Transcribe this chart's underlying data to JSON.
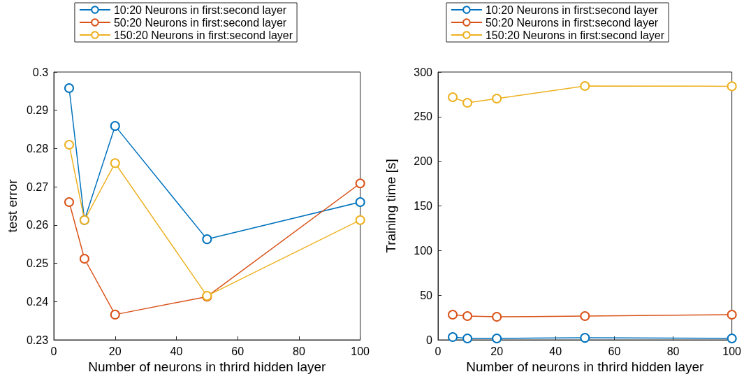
{
  "chart_data": [
    {
      "type": "line",
      "xlabel": "Number of neurons in thrird hidden layer",
      "ylabel": "test error",
      "x": [
        5,
        10,
        20,
        50,
        100
      ],
      "xlim": [
        0,
        100
      ],
      "xticks": [
        0,
        20,
        40,
        60,
        80,
        100
      ],
      "ylim": [
        0.23,
        0.3
      ],
      "yticks": [
        0.23,
        0.24,
        0.25,
        0.26,
        0.27,
        0.28,
        0.29,
        0.3
      ],
      "legend": "top",
      "marker": "circle",
      "series": [
        {
          "name": "10:20 Neurons in first:second layer",
          "color": "#0072bd",
          "values": [
            0.2958,
            0.2613,
            0.2859,
            0.2563,
            0.266
          ]
        },
        {
          "name": "50:20 Neurons in first:second layer",
          "color": "#d95319",
          "values": [
            0.266,
            0.2512,
            0.2366,
            0.2413,
            0.2709
          ]
        },
        {
          "name": "150:20 Neurons in first:second layer",
          "color": "#edb120",
          "values": [
            0.281,
            0.2613,
            0.2762,
            0.2415,
            0.2613
          ]
        }
      ]
    },
    {
      "type": "line",
      "xlabel": "Number of neurons in thrird hidden layer",
      "ylabel": "Training time [s]",
      "x": [
        5,
        10,
        20,
        50,
        100
      ],
      "xlim": [
        0,
        100
      ],
      "xticks": [
        0,
        20,
        40,
        60,
        80,
        100
      ],
      "ylim": [
        0,
        300
      ],
      "yticks": [
        0,
        50,
        100,
        150,
        200,
        250,
        300
      ],
      "legend": "top",
      "marker": "circle",
      "series": [
        {
          "name": "10:20 Neurons in first:second layer",
          "color": "#0072bd",
          "values": [
            3.1,
            1.6,
            1.6,
            2.3,
            1.6
          ]
        },
        {
          "name": "50:20 Neurons in first:second layer",
          "color": "#d95319",
          "values": [
            28.2,
            26.6,
            25.8,
            26.6,
            28.2
          ]
        },
        {
          "name": "150:20 Neurons in first:second layer",
          "color": "#edb120",
          "values": [
            271.8,
            265.5,
            270.2,
            284.3,
            284
          ]
        }
      ]
    }
  ]
}
